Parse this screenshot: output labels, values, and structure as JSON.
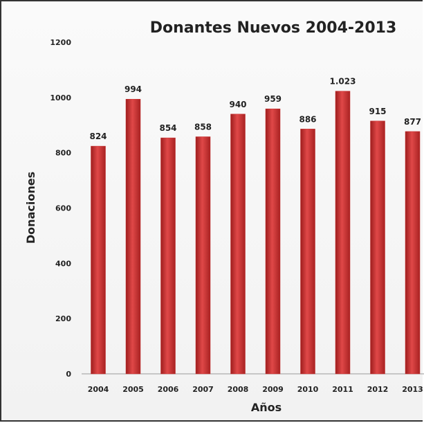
{
  "chart_data": {
    "type": "bar",
    "title": "Donantes Nuevos  2004-2013",
    "xlabel": "Años",
    "ylabel": "Donaciones",
    "categories": [
      "2004",
      "2005",
      "2006",
      "2007",
      "2008",
      "2009",
      "2010",
      "2011",
      "2012",
      "2013"
    ],
    "values": [
      824,
      994,
      854,
      858,
      940,
      959,
      886,
      1023,
      915,
      877
    ],
    "value_labels": [
      "824",
      "994",
      "854",
      "858",
      "940",
      "959",
      "886",
      "1.023",
      "915",
      "877"
    ],
    "ylim": [
      0,
      1200
    ],
    "yticks": [
      "0",
      "200",
      "400",
      "600",
      "800",
      "1000",
      "1200"
    ],
    "bar_color": "#c62c2c",
    "grid": false,
    "legend": "none"
  }
}
